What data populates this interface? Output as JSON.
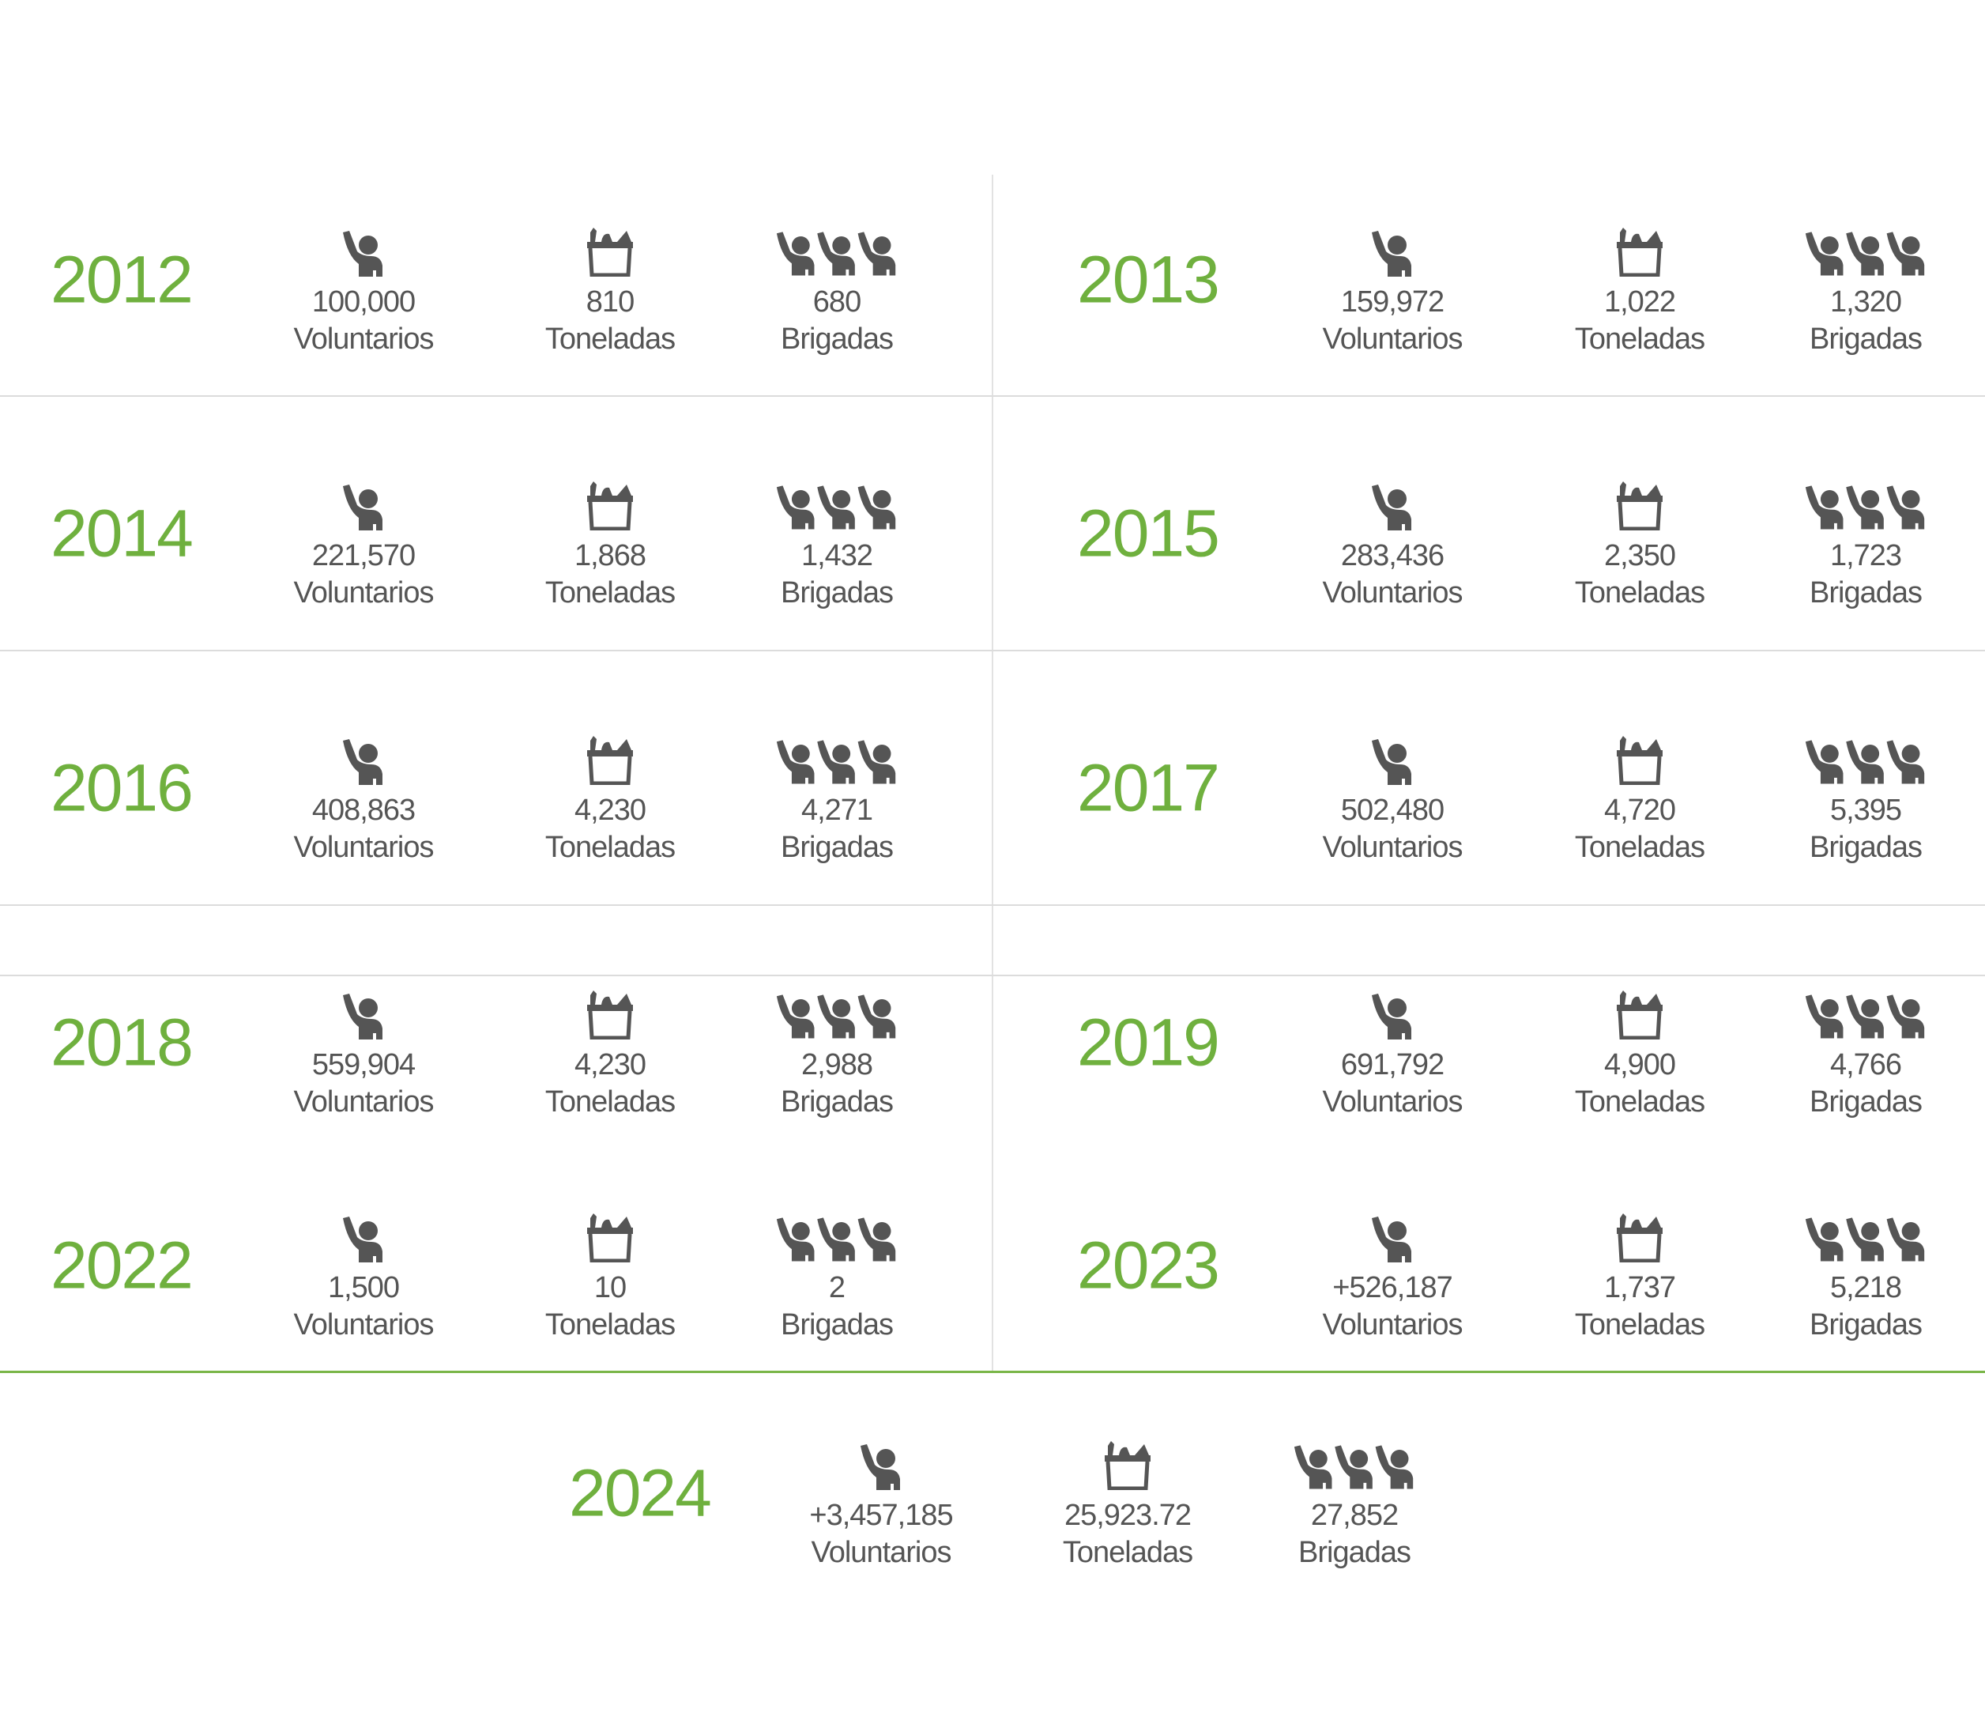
{
  "colors": {
    "year": "#6fb03e",
    "text": "#555555",
    "icon": "#555555",
    "divider": "#dcdcdc",
    "accent_line": "#7ab648"
  },
  "labels": {
    "volunteers": "Voluntarios",
    "tons": "Toneladas",
    "brigades": "Brigadas"
  },
  "icons": {
    "volunteers": "person-raising-hand-icon",
    "tons": "food-basket-icon",
    "brigades": "group-raising-hands-icon"
  },
  "years": [
    {
      "year": "2012",
      "volunteers": "100,000",
      "tons": "810",
      "brigades": "680"
    },
    {
      "year": "2013",
      "volunteers": "159,972",
      "tons": "1,022",
      "brigades": "1,320"
    },
    {
      "year": "2014",
      "volunteers": "221,570",
      "tons": "1,868",
      "brigades": "1,432"
    },
    {
      "year": "2015",
      "volunteers": "283,436",
      "tons": "2,350",
      "brigades": "1,723"
    },
    {
      "year": "2016",
      "volunteers": "408,863",
      "tons": "4,230",
      "brigades": "4,271"
    },
    {
      "year": "2017",
      "volunteers": "502,480",
      "tons": "4,720",
      "brigades": "5,395"
    },
    {
      "year": "2018",
      "volunteers": "559,904",
      "tons": "4,230",
      "brigades": "2,988"
    },
    {
      "year": "2019",
      "volunteers": "691,792",
      "tons": "4,900",
      "brigades": "4,766"
    },
    {
      "year": "2022",
      "volunteers": "1,500",
      "tons": "10",
      "brigades": "2"
    },
    {
      "year": "2023",
      "volunteers": "+526,187",
      "tons": "1,737",
      "brigades": "5,218"
    },
    {
      "year": "2024",
      "volunteers": "+3,457,185",
      "tons": "25,923.72",
      "brigades": "27,852"
    }
  ]
}
